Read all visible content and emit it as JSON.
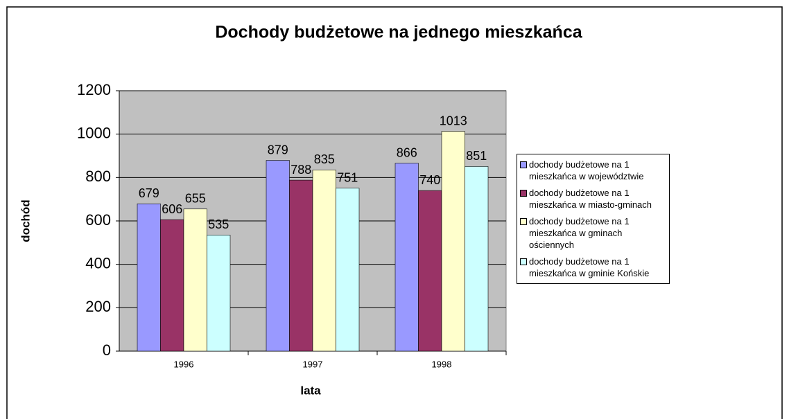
{
  "chart_data": {
    "type": "bar",
    "title": "Dochody budżetowe na jednego mieszkańca",
    "xlabel": "lata",
    "ylabel": "dochód",
    "categories": [
      "1996",
      "1997",
      "1998"
    ],
    "series": [
      {
        "name": "dochody budżetowe na 1 mieszkańca w województwie",
        "color": "#9999ff",
        "values": [
          679,
          879,
          866
        ]
      },
      {
        "name": "dochody budżetowe na 1 mieszkańca w miasto-gminach",
        "color": "#993366",
        "values": [
          606,
          788,
          740
        ]
      },
      {
        "name": "dochody budżetowe na 1 mieszkańca w gminach ościennych",
        "color": "#ffffcc",
        "values": [
          655,
          835,
          1013
        ]
      },
      {
        "name": "dochody budżetowe na 1 mieszkańca w gminie Końskie",
        "color": "#ccffff",
        "values": [
          535,
          751,
          851
        ]
      }
    ],
    "ylim": [
      0,
      1200
    ],
    "yticks": [
      0,
      200,
      400,
      600,
      800,
      1000,
      1200
    ],
    "grid": true,
    "legend": "right"
  }
}
